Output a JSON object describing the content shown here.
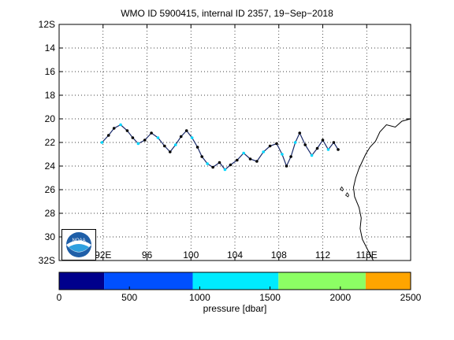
{
  "title": "WMO ID 5900415, internal ID 2357, 19−Sep−2018",
  "map": {
    "lat_ticks": [
      "12S",
      "14",
      "16",
      "18",
      "20",
      "22",
      "24",
      "26",
      "28",
      "30",
      "32S"
    ],
    "lat_values": [
      12,
      14,
      16,
      18,
      20,
      22,
      24,
      26,
      28,
      30,
      32
    ],
    "lon_ticks": [
      "92E",
      "96",
      "100",
      "104",
      "108",
      "112",
      "116E"
    ],
    "lon_values": [
      92,
      96,
      100,
      104,
      108,
      112,
      116
    ],
    "lon_range": [
      88,
      120
    ],
    "lat_range": [
      12,
      32
    ],
    "grid": "dotted",
    "track_color": "#000000",
    "track_points": [
      [
        91.9,
        22.0
      ],
      [
        92.5,
        21.4
      ],
      [
        93.0,
        20.8
      ],
      [
        93.6,
        20.5
      ],
      [
        94.2,
        21.0
      ],
      [
        94.7,
        21.6
      ],
      [
        95.2,
        22.1
      ],
      [
        95.8,
        21.8
      ],
      [
        96.4,
        21.2
      ],
      [
        97.0,
        21.6
      ],
      [
        97.6,
        22.3
      ],
      [
        98.1,
        22.8
      ],
      [
        98.6,
        22.2
      ],
      [
        99.1,
        21.5
      ],
      [
        99.6,
        21.0
      ],
      [
        100.1,
        21.6
      ],
      [
        100.6,
        22.4
      ],
      [
        101.0,
        23.2
      ],
      [
        101.5,
        23.8
      ],
      [
        102.0,
        24.1
      ],
      [
        102.6,
        23.7
      ],
      [
        103.1,
        24.3
      ],
      [
        103.6,
        23.9
      ],
      [
        104.2,
        23.5
      ],
      [
        104.8,
        22.9
      ],
      [
        105.4,
        23.4
      ],
      [
        106.0,
        23.6
      ],
      [
        106.6,
        22.8
      ],
      [
        107.2,
        22.3
      ],
      [
        107.8,
        22.1
      ],
      [
        108.3,
        23.0
      ],
      [
        108.7,
        24.0
      ],
      [
        109.1,
        23.2
      ],
      [
        109.5,
        22.0
      ],
      [
        109.9,
        21.2
      ],
      [
        110.4,
        22.2
      ],
      [
        111.0,
        23.1
      ],
      [
        111.5,
        22.5
      ],
      [
        112.0,
        21.8
      ],
      [
        112.5,
        22.6
      ],
      [
        113.0,
        22.0
      ],
      [
        113.4,
        22.6
      ]
    ],
    "coast_color": "#000000"
  },
  "colorbar": {
    "ticks": [
      "0",
      "500",
      "1000",
      "1500",
      "2000",
      "2500"
    ],
    "tick_values": [
      0,
      500,
      1000,
      1500,
      2000,
      2500
    ],
    "range": [
      0,
      2500
    ],
    "segments": [
      {
        "from": 0,
        "to": 320,
        "color": "#00008c"
      },
      {
        "from": 320,
        "to": 950,
        "color": "#0050ff"
      },
      {
        "from": 950,
        "to": 1560,
        "color": "#00ebff"
      },
      {
        "from": 1560,
        "to": 2180,
        "color": "#8cff64"
      },
      {
        "from": 2180,
        "to": 2500,
        "color": "#ffa500"
      }
    ],
    "label": "pressure [dbar]"
  },
  "logo": {
    "name": "noaa-logo",
    "text": "NOAA"
  }
}
